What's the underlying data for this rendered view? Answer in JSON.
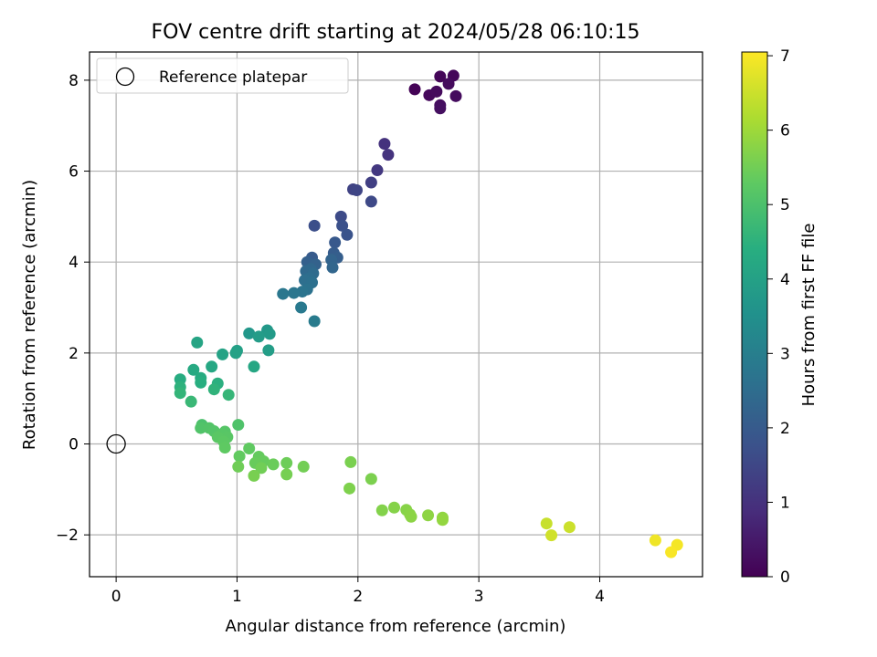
{
  "chart_data": {
    "type": "scatter",
    "title": "FOV centre drift starting at 2024/05/28 06:10:15",
    "xlabel": "Angular distance from reference (arcmin)",
    "ylabel": "Rotation from reference (arcmin)",
    "xlim": [
      -0.22,
      4.85
    ],
    "ylim": [
      -2.92,
      8.62
    ],
    "xticks": [
      0,
      1,
      2,
      3,
      4
    ],
    "yticks": [
      -2,
      0,
      2,
      4,
      6,
      8
    ],
    "grid": true,
    "legend": {
      "label": "Reference platepar",
      "placement": "top-left"
    },
    "reference_point": {
      "x": 0,
      "y": 0
    },
    "colorbar": {
      "label": "Hours from first FF file",
      "min": 0,
      "max": 7.05,
      "ticks": [
        0,
        1,
        2,
        3,
        4,
        5,
        6,
        7
      ],
      "colormap": "viridis"
    },
    "points": [
      {
        "x": 2.47,
        "y": 7.8,
        "c": 0.05
      },
      {
        "x": 2.68,
        "y": 8.08,
        "c": 0.1
      },
      {
        "x": 2.79,
        "y": 8.1,
        "c": 0.12
      },
      {
        "x": 2.59,
        "y": 7.67,
        "c": 0.15
      },
      {
        "x": 2.65,
        "y": 7.75,
        "c": 0.18
      },
      {
        "x": 2.75,
        "y": 7.92,
        "c": 0.2
      },
      {
        "x": 2.81,
        "y": 7.65,
        "c": 0.22
      },
      {
        "x": 2.68,
        "y": 7.45,
        "c": 0.25
      },
      {
        "x": 2.68,
        "y": 7.38,
        "c": 0.28
      },
      {
        "x": 2.22,
        "y": 6.6,
        "c": 1.0
      },
      {
        "x": 2.25,
        "y": 6.36,
        "c": 1.05
      },
      {
        "x": 2.16,
        "y": 6.02,
        "c": 1.15
      },
      {
        "x": 2.11,
        "y": 5.75,
        "c": 1.3
      },
      {
        "x": 1.96,
        "y": 5.6,
        "c": 1.4
      },
      {
        "x": 1.99,
        "y": 5.58,
        "c": 1.45
      },
      {
        "x": 2.11,
        "y": 5.33,
        "c": 1.55
      },
      {
        "x": 1.86,
        "y": 5.0,
        "c": 1.6
      },
      {
        "x": 1.64,
        "y": 4.8,
        "c": 1.7
      },
      {
        "x": 1.87,
        "y": 4.8,
        "c": 1.75
      },
      {
        "x": 1.91,
        "y": 4.6,
        "c": 1.8
      },
      {
        "x": 1.81,
        "y": 4.43,
        "c": 1.95
      },
      {
        "x": 1.62,
        "y": 4.1,
        "c": 2.0
      },
      {
        "x": 1.8,
        "y": 4.2,
        "c": 2.05
      },
      {
        "x": 1.83,
        "y": 4.1,
        "c": 2.1
      },
      {
        "x": 1.58,
        "y": 4.0,
        "c": 2.15
      },
      {
        "x": 1.65,
        "y": 3.95,
        "c": 2.2
      },
      {
        "x": 1.78,
        "y": 4.05,
        "c": 2.25
      },
      {
        "x": 1.79,
        "y": 3.88,
        "c": 2.3
      },
      {
        "x": 1.61,
        "y": 3.85,
        "c": 2.35
      },
      {
        "x": 1.57,
        "y": 3.8,
        "c": 2.4
      },
      {
        "x": 1.63,
        "y": 3.75,
        "c": 2.45
      },
      {
        "x": 1.6,
        "y": 3.65,
        "c": 2.5
      },
      {
        "x": 1.56,
        "y": 3.6,
        "c": 2.55
      },
      {
        "x": 1.62,
        "y": 3.55,
        "c": 2.6
      },
      {
        "x": 1.58,
        "y": 3.4,
        "c": 2.65
      },
      {
        "x": 1.54,
        "y": 3.35,
        "c": 2.7
      },
      {
        "x": 1.47,
        "y": 3.32,
        "c": 2.75
      },
      {
        "x": 1.38,
        "y": 3.3,
        "c": 2.8
      },
      {
        "x": 1.53,
        "y": 3.0,
        "c": 2.85
      },
      {
        "x": 1.64,
        "y": 2.7,
        "c": 2.9
      },
      {
        "x": 1.1,
        "y": 2.43,
        "c": 3.7
      },
      {
        "x": 1.25,
        "y": 2.5,
        "c": 3.75
      },
      {
        "x": 1.27,
        "y": 2.42,
        "c": 3.8
      },
      {
        "x": 1.18,
        "y": 2.36,
        "c": 3.85
      },
      {
        "x": 1.26,
        "y": 2.06,
        "c": 3.9
      },
      {
        "x": 1.0,
        "y": 2.05,
        "c": 3.95
      },
      {
        "x": 0.99,
        "y": 2.0,
        "c": 4.0
      },
      {
        "x": 0.88,
        "y": 1.97,
        "c": 4.05
      },
      {
        "x": 0.67,
        "y": 2.23,
        "c": 4.1
      },
      {
        "x": 1.14,
        "y": 1.7,
        "c": 4.15
      },
      {
        "x": 0.79,
        "y": 1.7,
        "c": 4.2
      },
      {
        "x": 0.64,
        "y": 1.63,
        "c": 4.25
      },
      {
        "x": 0.7,
        "y": 1.45,
        "c": 4.3
      },
      {
        "x": 0.53,
        "y": 1.42,
        "c": 4.35
      },
      {
        "x": 0.7,
        "y": 1.35,
        "c": 4.4
      },
      {
        "x": 0.84,
        "y": 1.33,
        "c": 4.45
      },
      {
        "x": 0.53,
        "y": 1.25,
        "c": 4.5
      },
      {
        "x": 0.81,
        "y": 1.2,
        "c": 4.55
      },
      {
        "x": 0.53,
        "y": 1.12,
        "c": 4.6
      },
      {
        "x": 0.93,
        "y": 1.08,
        "c": 4.65
      },
      {
        "x": 0.62,
        "y": 0.93,
        "c": 4.7
      },
      {
        "x": 0.71,
        "y": 0.42,
        "c": 5.0
      },
      {
        "x": 1.01,
        "y": 0.42,
        "c": 5.05
      },
      {
        "x": 0.7,
        "y": 0.35,
        "c": 5.08
      },
      {
        "x": 0.77,
        "y": 0.35,
        "c": 5.1
      },
      {
        "x": 0.81,
        "y": 0.28,
        "c": 5.12
      },
      {
        "x": 0.9,
        "y": 0.27,
        "c": 5.15
      },
      {
        "x": 0.88,
        "y": 0.22,
        "c": 5.18
      },
      {
        "x": 0.92,
        "y": 0.15,
        "c": 5.2
      },
      {
        "x": 0.84,
        "y": 0.15,
        "c": 5.22
      },
      {
        "x": 0.89,
        "y": 0.05,
        "c": 5.25
      },
      {
        "x": 0.9,
        "y": -0.08,
        "c": 5.28
      },
      {
        "x": 1.1,
        "y": -0.1,
        "c": 5.3
      },
      {
        "x": 1.02,
        "y": -0.27,
        "c": 5.32
      },
      {
        "x": 1.18,
        "y": -0.28,
        "c": 5.35
      },
      {
        "x": 1.22,
        "y": -0.38,
        "c": 5.38
      },
      {
        "x": 1.15,
        "y": -0.42,
        "c": 5.4
      },
      {
        "x": 1.3,
        "y": -0.45,
        "c": 5.42
      },
      {
        "x": 1.41,
        "y": -0.42,
        "c": 5.45
      },
      {
        "x": 1.01,
        "y": -0.5,
        "c": 5.48
      },
      {
        "x": 1.2,
        "y": -0.53,
        "c": 5.5
      },
      {
        "x": 1.55,
        "y": -0.5,
        "c": 5.52
      },
      {
        "x": 1.41,
        "y": -0.67,
        "c": 5.55
      },
      {
        "x": 1.14,
        "y": -0.7,
        "c": 5.58
      },
      {
        "x": 1.94,
        "y": -0.4,
        "c": 5.6
      },
      {
        "x": 2.11,
        "y": -0.77,
        "c": 5.62
      },
      {
        "x": 1.93,
        "y": -0.98,
        "c": 5.65
      },
      {
        "x": 2.2,
        "y": -1.46,
        "c": 5.7
      },
      {
        "x": 2.3,
        "y": -1.4,
        "c": 5.72
      },
      {
        "x": 2.4,
        "y": -1.45,
        "c": 5.75
      },
      {
        "x": 2.43,
        "y": -1.55,
        "c": 5.78
      },
      {
        "x": 2.44,
        "y": -1.6,
        "c": 5.8
      },
      {
        "x": 2.58,
        "y": -1.57,
        "c": 5.82
      },
      {
        "x": 2.7,
        "y": -1.62,
        "c": 5.85
      },
      {
        "x": 2.7,
        "y": -1.67,
        "c": 5.88
      },
      {
        "x": 3.56,
        "y": -1.75,
        "c": 6.45
      },
      {
        "x": 3.75,
        "y": -1.83,
        "c": 6.5
      },
      {
        "x": 3.6,
        "y": -2.01,
        "c": 6.55
      },
      {
        "x": 4.46,
        "y": -2.12,
        "c": 6.9
      },
      {
        "x": 4.64,
        "y": -2.22,
        "c": 6.95
      },
      {
        "x": 4.59,
        "y": -2.38,
        "c": 7.0
      }
    ]
  }
}
